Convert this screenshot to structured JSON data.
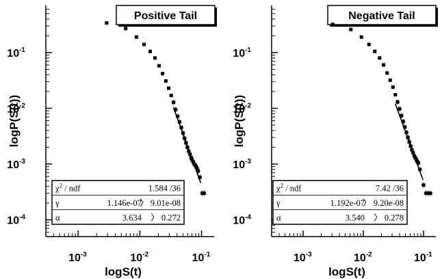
{
  "chart_data": [
    {
      "type": "scatter",
      "title": "Positive Tail",
      "xlabel": "logS(t)",
      "ylabel": "logP(S(t))",
      "xscale": "log",
      "yscale": "log",
      "xlim": [
        0.0003,
        0.16
      ],
      "ylim": [
        5e-05,
        0.7
      ],
      "x_ticks": [
        {
          "base": "10",
          "exp": "-3",
          "value": 0.001
        },
        {
          "base": "10",
          "exp": "-2",
          "value": 0.01
        },
        {
          "base": "10",
          "exp": "-1",
          "value": 0.1
        }
      ],
      "y_ticks": [
        {
          "base": "10",
          "exp": "-4",
          "value": 0.0001
        },
        {
          "base": "10",
          "exp": "-3",
          "value": 0.001
        },
        {
          "base": "10",
          "exp": "-2",
          "value": 0.01
        },
        {
          "base": "10",
          "exp": "-1",
          "value": 0.1
        }
      ],
      "x": [
        0.0029,
        0.0059,
        0.0088,
        0.0117,
        0.0147,
        0.0176,
        0.0205,
        0.0234,
        0.0264,
        0.0293,
        0.0322,
        0.0352,
        0.038,
        0.041,
        0.044,
        0.047,
        0.05,
        0.053,
        0.056,
        0.059,
        0.062,
        0.065,
        0.068,
        0.07,
        0.073,
        0.076,
        0.079,
        0.082,
        0.085,
        0.088,
        0.094,
        0.103,
        0.11
      ],
      "y": [
        0.34,
        0.27,
        0.19,
        0.14,
        0.105,
        0.08,
        0.058,
        0.042,
        0.031,
        0.023,
        0.017,
        0.0128,
        0.0095,
        0.0072,
        0.0057,
        0.0045,
        0.0036,
        0.0029,
        0.0024,
        0.002,
        0.0017,
        0.0015,
        0.0013,
        0.0012,
        0.0011,
        0.001,
        0.00095,
        0.0009,
        0.00082,
        0.00075,
        0.00058,
        0.0003,
        0.0003
      ],
      "fit": {
        "x": [
          0.035,
          0.097
        ],
        "y": [
          0.0104,
          0.00046
        ]
      },
      "stats": [
        {
          "label": "χ",
          "sup": "2",
          "label_tail": " / ndf",
          "value": "1.584 /36"
        },
        {
          "label": "γ",
          "sup": "",
          "label_tail": "",
          "value": "1.146e-07",
          "error": "〉 9.01e-08"
        },
        {
          "label": "α",
          "sup": "",
          "label_tail": "",
          "value": "3.634",
          "error": "〉 0.272"
        }
      ]
    },
    {
      "type": "scatter",
      "title": "Negative Tail",
      "xlabel": "logS(t)",
      "ylabel": "logP(S(t))",
      "xscale": "log",
      "yscale": "log",
      "xlim": [
        0.0003,
        0.16
      ],
      "ylim": [
        5e-05,
        0.7
      ],
      "x_ticks": [
        {
          "base": "10",
          "exp": "-3",
          "value": 0.001
        },
        {
          "base": "10",
          "exp": "-2",
          "value": 0.01
        },
        {
          "base": "10",
          "exp": "-1",
          "value": 0.1
        }
      ],
      "y_ticks": [
        {
          "base": "10",
          "exp": "-4",
          "value": 0.0001
        },
        {
          "base": "10",
          "exp": "-3",
          "value": 0.001
        },
        {
          "base": "10",
          "exp": "-2",
          "value": 0.01
        },
        {
          "base": "10",
          "exp": "-1",
          "value": 0.1
        }
      ],
      "x": [
        0.0031,
        0.0062,
        0.0093,
        0.0124,
        0.0155,
        0.0186,
        0.0217,
        0.0248,
        0.0279,
        0.031,
        0.034,
        0.037,
        0.04,
        0.043,
        0.046,
        0.049,
        0.052,
        0.055,
        0.058,
        0.061,
        0.064,
        0.067,
        0.07,
        0.073,
        0.076,
        0.079,
        0.082,
        0.087,
        0.1,
        0.11,
        0.12,
        0.13
      ],
      "y": [
        0.32,
        0.26,
        0.19,
        0.14,
        0.105,
        0.08,
        0.06,
        0.043,
        0.032,
        0.024,
        0.0175,
        0.013,
        0.0098,
        0.0074,
        0.0058,
        0.0046,
        0.0037,
        0.003,
        0.0025,
        0.0021,
        0.0018,
        0.0016,
        0.0014,
        0.0013,
        0.0012,
        0.0011,
        0.00105,
        0.0008,
        0.00042,
        0.0003,
        0.0003,
        0.0003
      ],
      "fit": {
        "x": [
          0.034,
          0.098
        ],
        "y": [
          0.012,
          0.00052
        ]
      },
      "stats": [
        {
          "label": "χ",
          "sup": "2",
          "label_tail": " / ndf",
          "value": "7.42 /36"
        },
        {
          "label": "γ",
          "sup": "",
          "label_tail": "",
          "value": "1.192e-07",
          "error": "〉 9.20e-08"
        },
        {
          "label": "α",
          "sup": "",
          "label_tail": "",
          "value": "3.540",
          "error": "〉 0.278"
        }
      ]
    }
  ]
}
